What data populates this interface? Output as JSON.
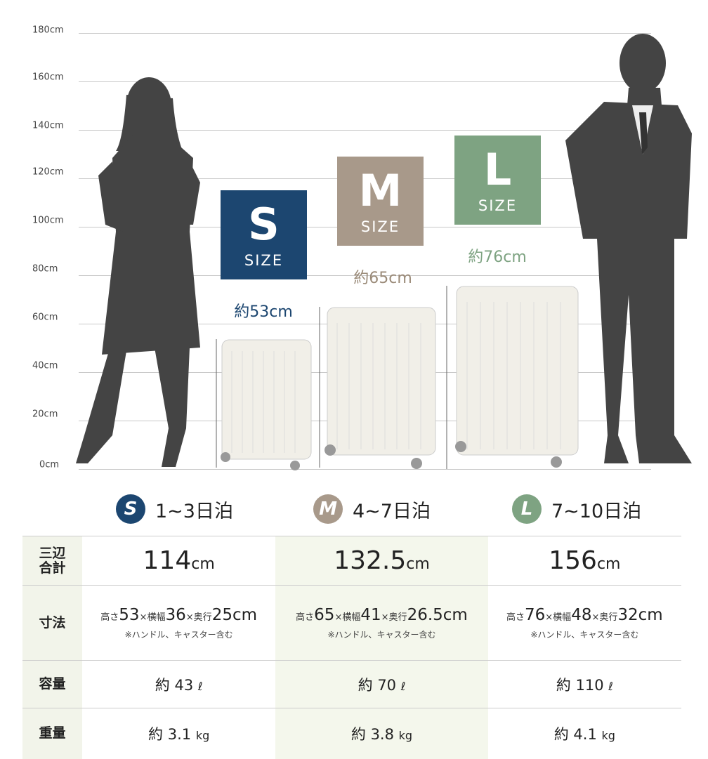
{
  "axis": {
    "ticks": [
      "0cm",
      "20cm",
      "40cm",
      "60cm",
      "80cm",
      "100cm",
      "120cm",
      "140cm",
      "160cm",
      "180cm"
    ]
  },
  "colors": {
    "S": "#1c4670",
    "M": "#a8998a",
    "L": "#7ea382",
    "silhouette": "#444444"
  },
  "sizes": [
    {
      "letter": "S",
      "word": "SIZE",
      "height_label": "約53cm",
      "height_cm": 53,
      "trip": "1~3日泊"
    },
    {
      "letter": "M",
      "word": "SIZE",
      "height_label": "約65cm",
      "height_cm": 65,
      "trip": "4~7日泊"
    },
    {
      "letter": "L",
      "word": "SIZE",
      "height_label": "約76cm",
      "height_cm": 76,
      "trip": "7~10日泊"
    }
  ],
  "table": {
    "row_labels": {
      "total": "三辺\n合計",
      "dims": "寸法",
      "capacity": "容量",
      "weight": "重量"
    },
    "dim_words": {
      "h": "高さ",
      "w": "横幅",
      "d": "奥行",
      "x": "×"
    },
    "cols": [
      {
        "total": "114",
        "total_unit": "cm",
        "h": "53",
        "w": "36",
        "d": "25cm",
        "note": "※ハンドル、キャスター含む",
        "cap_prefix": "約",
        "cap": "43",
        "cap_unit": "ℓ",
        "wt_prefix": "約",
        "wt": "3.1",
        "wt_unit": "kg"
      },
      {
        "total": "132.5",
        "total_unit": "cm",
        "h": "65",
        "w": "41",
        "d": "26.5cm",
        "note": "※ハンドル、キャスター含む",
        "cap_prefix": "約",
        "cap": "70",
        "cap_unit": "ℓ",
        "wt_prefix": "約",
        "wt": "3.8",
        "wt_unit": "kg"
      },
      {
        "total": "156",
        "total_unit": "cm",
        "h": "76",
        "w": "48",
        "d": "32cm",
        "note": "※ハンドル、キャスター含む",
        "cap_prefix": "約",
        "cap": "110",
        "cap_unit": "ℓ",
        "wt_prefix": "約",
        "wt": "4.1",
        "wt_unit": "kg"
      }
    ]
  }
}
